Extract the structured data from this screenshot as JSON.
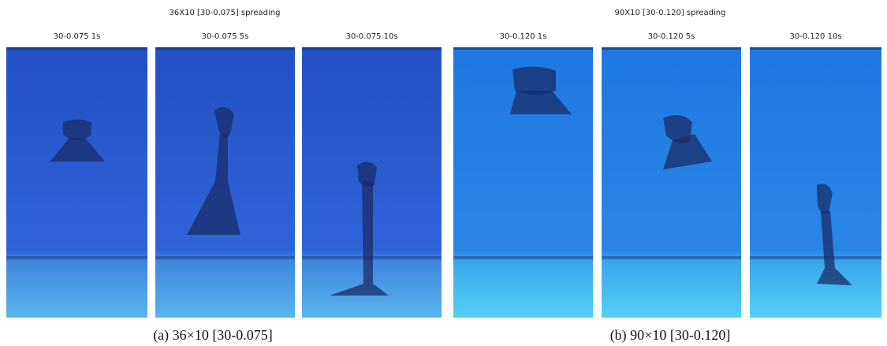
{
  "groups": [
    {
      "title": "36X10  [30-0.075]  spreading",
      "caption": "(a)  36×10  [30-0.075]",
      "panels": [
        {
          "label": "30-0.075 1s"
        },
        {
          "label": "30-0.075 5s"
        },
        {
          "label": "30-0.075 10s"
        }
      ]
    },
    {
      "title": "90X10  [30-0.120] spreading",
      "caption": "(b)  90×10  [30-0.120]",
      "panels": [
        {
          "label": "30-0.120 1s"
        },
        {
          "label": "30-0.120 5s"
        },
        {
          "label": "30-0.120 10s"
        }
      ]
    }
  ]
}
